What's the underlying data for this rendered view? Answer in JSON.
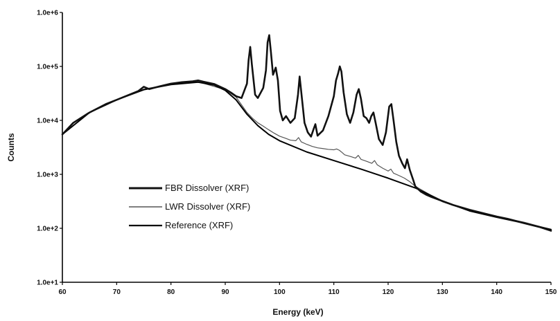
{
  "chart_data": {
    "type": "line",
    "title": "",
    "xlabel": "Energy (keV)",
    "ylabel": "Counts",
    "xlim": [
      60,
      150
    ],
    "ylim": [
      10,
      1000000
    ],
    "yscale": "log",
    "grid": false,
    "legend_position": "lower-left",
    "x_ticks": [
      60,
      70,
      80,
      90,
      100,
      110,
      120,
      130,
      140,
      150
    ],
    "x_tick_labels": [
      "60",
      "70",
      "80",
      "90",
      "100",
      "110",
      "120",
      "130",
      "140",
      "150"
    ],
    "y_ticks": [
      10,
      100,
      1000,
      10000,
      100000,
      1000000
    ],
    "y_tick_labels": [
      "1.0e+1",
      "1.0e+2",
      "1.0e+3",
      "1.0e+4",
      "1.0e+5",
      "1.0e+6"
    ],
    "series": [
      {
        "name": "FBR Dissolver (XRF)",
        "color": "#111111",
        "x": [
          60,
          62,
          65,
          68,
          70,
          72,
          74,
          75,
          76,
          78,
          80,
          82,
          84,
          85,
          86,
          88,
          90,
          91,
          92,
          93,
          94,
          94.3,
          94.6,
          94.9,
          95.5,
          96,
          97,
          97.5,
          97.8,
          98.1,
          98.4,
          98.8,
          99.3,
          99.7,
          100.1,
          100.6,
          101.2,
          102,
          102.8,
          103.4,
          103.7,
          104.1,
          104.6,
          105.2,
          105.8,
          106.3,
          106.6,
          107,
          108,
          109,
          110,
          110.4,
          110.8,
          111.1,
          111.4,
          111.8,
          112.4,
          113,
          113.6,
          114.2,
          114.6,
          115,
          115.5,
          116,
          116.5,
          116.9,
          117.3,
          117.7,
          118.3,
          119,
          119.6,
          120.2,
          120.6,
          121,
          121.5,
          122,
          122.6,
          123.1,
          123.5,
          124,
          124.6,
          125,
          126,
          127,
          128,
          130,
          132,
          135,
          138,
          140,
          142,
          145,
          148,
          150
        ],
        "y": [
          5500,
          9000,
          14000,
          20000,
          24000,
          29000,
          35000,
          42000,
          38000,
          43000,
          48000,
          51000,
          53000,
          55000,
          52000,
          47000,
          38000,
          33000,
          28000,
          26000,
          48000,
          130000,
          230000,
          110000,
          30000,
          26000,
          40000,
          85000,
          280000,
          380000,
          190000,
          70000,
          95000,
          55000,
          15000,
          10000,
          12000,
          9000,
          11000,
          30000,
          65000,
          27000,
          9000,
          6000,
          5000,
          7000,
          8500,
          5200,
          6500,
          12000,
          28000,
          55000,
          75000,
          100000,
          80000,
          33000,
          13000,
          9000,
          14000,
          30000,
          38000,
          25000,
          12000,
          11000,
          9000,
          12000,
          14000,
          9000,
          4500,
          3500,
          6000,
          18000,
          20000,
          10000,
          4000,
          2200,
          1600,
          1300,
          1900,
          1200,
          800,
          600,
          480,
          420,
          380,
          320,
          270,
          220,
          185,
          165,
          150,
          125,
          105,
          90
        ]
      },
      {
        "name": "LWR Dissolver (XRF)",
        "color": "#555555",
        "x": [
          60,
          65,
          70,
          75,
          80,
          85,
          90,
          92,
          94,
          95,
          96,
          97,
          98,
          99,
          100,
          101,
          102,
          103,
          103.5,
          104,
          105,
          106,
          107,
          108,
          109,
          110,
          110.5,
          111,
          111.5,
          112,
          113,
          114,
          114.5,
          115,
          116,
          117,
          117.5,
          118,
          119,
          120,
          120.5,
          121,
          122,
          123,
          124,
          125,
          130,
          135,
          140,
          145,
          150
        ],
        "y": [
          5500,
          14000,
          24000,
          38000,
          47000,
          52000,
          37000,
          27000,
          14000,
          11000,
          9000,
          7800,
          6700,
          5800,
          5100,
          4700,
          4300,
          4200,
          4800,
          4000,
          3600,
          3300,
          3100,
          3000,
          2900,
          2850,
          2950,
          2800,
          2550,
          2300,
          2150,
          2000,
          2250,
          1900,
          1750,
          1600,
          1800,
          1500,
          1300,
          1150,
          1250,
          1050,
          950,
          850,
          730,
          600,
          310,
          210,
          165,
          130,
          95
        ]
      },
      {
        "name": "Reference (XRF)",
        "color": "#000000",
        "x": [
          60,
          65,
          70,
          75,
          80,
          85,
          88,
          90,
          92,
          94,
          96,
          98,
          100,
          105,
          110,
          115,
          120,
          125,
          130,
          135,
          140,
          145,
          150
        ],
        "y": [
          5500,
          14000,
          24000,
          37000,
          46000,
          51000,
          45000,
          36000,
          24000,
          13000,
          8000,
          5500,
          4200,
          2600,
          1800,
          1250,
          850,
          560,
          320,
          210,
          160,
          125,
          95
        ]
      }
    ]
  }
}
